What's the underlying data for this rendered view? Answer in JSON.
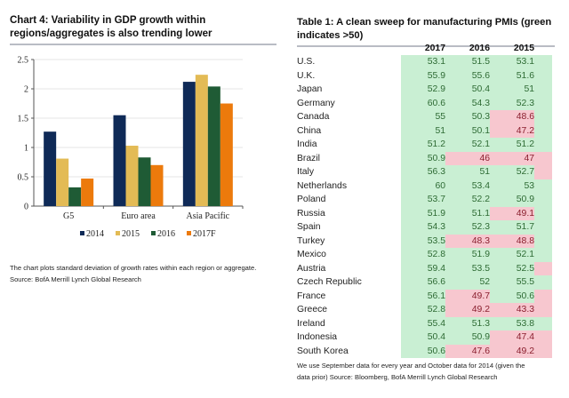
{
  "left_panel": {
    "title_line1": "Chart 4: Variability in GDP growth within",
    "title_line2": "regions/aggregates is also trending lower",
    "note_line1": "The chart plots standard deviation of growth rates within each region or aggregate.",
    "note_line2": "Source: BofA Merrill Lynch Global Research"
  },
  "chart_data": {
    "type": "bar",
    "title": "Chart 4: Variability in GDP growth within regions/aggregates is also trending lower",
    "xlabel": "",
    "ylabel": "",
    "categories": [
      "G5",
      "Euro area",
      "Asia Pacific"
    ],
    "series": [
      {
        "name": "2014",
        "color": "#0f2a57",
        "values": [
          1.27,
          1.55,
          2.12
        ]
      },
      {
        "name": "2015",
        "color": "#e3bb55",
        "values": [
          0.81,
          1.03,
          2.24
        ]
      },
      {
        "name": "2016",
        "color": "#1f5b35",
        "values": [
          0.32,
          0.83,
          2.04
        ]
      },
      {
        "name": "2017F",
        "color": "#ec7a0c",
        "values": [
          0.47,
          0.7,
          1.75
        ]
      }
    ],
    "ylim": [
      0,
      2.5
    ],
    "yticks": [
      "0",
      "0.5",
      "1",
      "1.5",
      "2",
      "2.5"
    ],
    "grid": true,
    "legend": "bottom"
  },
  "right_panel": {
    "title_line1": "Table 1: A clean sweep for manufacturing PMIs (green",
    "title_line2": "indicates >50)",
    "columns": [
      "2017",
      "2016",
      "2015"
    ],
    "rows": [
      {
        "country": "U.S.",
        "values": [
          "53.1",
          "51.5",
          "53.1"
        ],
        "status": [
          "g",
          "g",
          "g"
        ],
        "c2014": "g"
      },
      {
        "country": "U.K.",
        "values": [
          "55.9",
          "55.6",
          "51.6"
        ],
        "status": [
          "g",
          "g",
          "g"
        ],
        "c2014": "g"
      },
      {
        "country": "Japan",
        "values": [
          "52.9",
          "50.4",
          "51"
        ],
        "status": [
          "g",
          "g",
          "g"
        ],
        "c2014": "g"
      },
      {
        "country": "Germany",
        "values": [
          "60.6",
          "54.3",
          "52.3"
        ],
        "status": [
          "g",
          "g",
          "g"
        ],
        "c2014": "g"
      },
      {
        "country": "Canada",
        "values": [
          "55",
          "50.3",
          "48.6"
        ],
        "status": [
          "g",
          "g",
          "r"
        ],
        "c2014": "g"
      },
      {
        "country": "China",
        "values": [
          "51",
          "50.1",
          "47.2"
        ],
        "status": [
          "g",
          "g",
          "r"
        ],
        "c2014": "g"
      },
      {
        "country": "India",
        "values": [
          "51.2",
          "52.1",
          "51.2"
        ],
        "status": [
          "g",
          "g",
          "g"
        ],
        "c2014": "g"
      },
      {
        "country": "Brazil",
        "values": [
          "50.9",
          "46",
          "47"
        ],
        "status": [
          "g",
          "r",
          "r"
        ],
        "c2014": "r"
      },
      {
        "country": "Italy",
        "values": [
          "56.3",
          "51",
          "52.7"
        ],
        "status": [
          "g",
          "g",
          "g"
        ],
        "c2014": "r"
      },
      {
        "country": "Netherlands",
        "values": [
          "60",
          "53.4",
          "53"
        ],
        "status": [
          "g",
          "g",
          "g"
        ],
        "c2014": "g"
      },
      {
        "country": "Poland",
        "values": [
          "53.7",
          "52.2",
          "50.9"
        ],
        "status": [
          "g",
          "g",
          "g"
        ],
        "c2014": "g"
      },
      {
        "country": "Russia",
        "values": [
          "51.9",
          "51.1",
          "49.1"
        ],
        "status": [
          "g",
          "g",
          "r"
        ],
        "c2014": "g"
      },
      {
        "country": "Spain",
        "values": [
          "54.3",
          "52.3",
          "51.7"
        ],
        "status": [
          "g",
          "g",
          "g"
        ],
        "c2014": "g"
      },
      {
        "country": "Turkey",
        "values": [
          "53.5",
          "48.3",
          "48.8"
        ],
        "status": [
          "g",
          "r",
          "r"
        ],
        "c2014": "g"
      },
      {
        "country": "Mexico",
        "values": [
          "52.8",
          "51.9",
          "52.1"
        ],
        "status": [
          "g",
          "g",
          "g"
        ],
        "c2014": "g"
      },
      {
        "country": "Austria",
        "values": [
          "59.4",
          "53.5",
          "52.5"
        ],
        "status": [
          "g",
          "g",
          "g"
        ],
        "c2014": "r"
      },
      {
        "country": "Czech Republic",
        "values": [
          "56.6",
          "52",
          "55.5"
        ],
        "status": [
          "g",
          "g",
          "g"
        ],
        "c2014": "g"
      },
      {
        "country": "France",
        "values": [
          "56.1",
          "49.7",
          "50.6"
        ],
        "status": [
          "g",
          "r",
          "g"
        ],
        "c2014": "r"
      },
      {
        "country": "Greece",
        "values": [
          "52.8",
          "49.2",
          "43.3"
        ],
        "status": [
          "g",
          "r",
          "r"
        ],
        "c2014": "r"
      },
      {
        "country": "Ireland",
        "values": [
          "55.4",
          "51.3",
          "53.8"
        ],
        "status": [
          "g",
          "g",
          "g"
        ],
        "c2014": "g"
      },
      {
        "country": "Indonesia",
        "values": [
          "50.4",
          "50.9",
          "47.4"
        ],
        "status": [
          "g",
          "g",
          "r"
        ],
        "c2014": "r"
      },
      {
        "country": "South Korea",
        "values": [
          "50.6",
          "47.6",
          "49.2"
        ],
        "status": [
          "g",
          "r",
          "r"
        ],
        "c2014": "r"
      }
    ],
    "note_line1": "We use September data for every year and October data for 2014 (given the",
    "note_line2": "data prior) Source: Bloomberg, BofA Merrill Lynch Global Research"
  }
}
